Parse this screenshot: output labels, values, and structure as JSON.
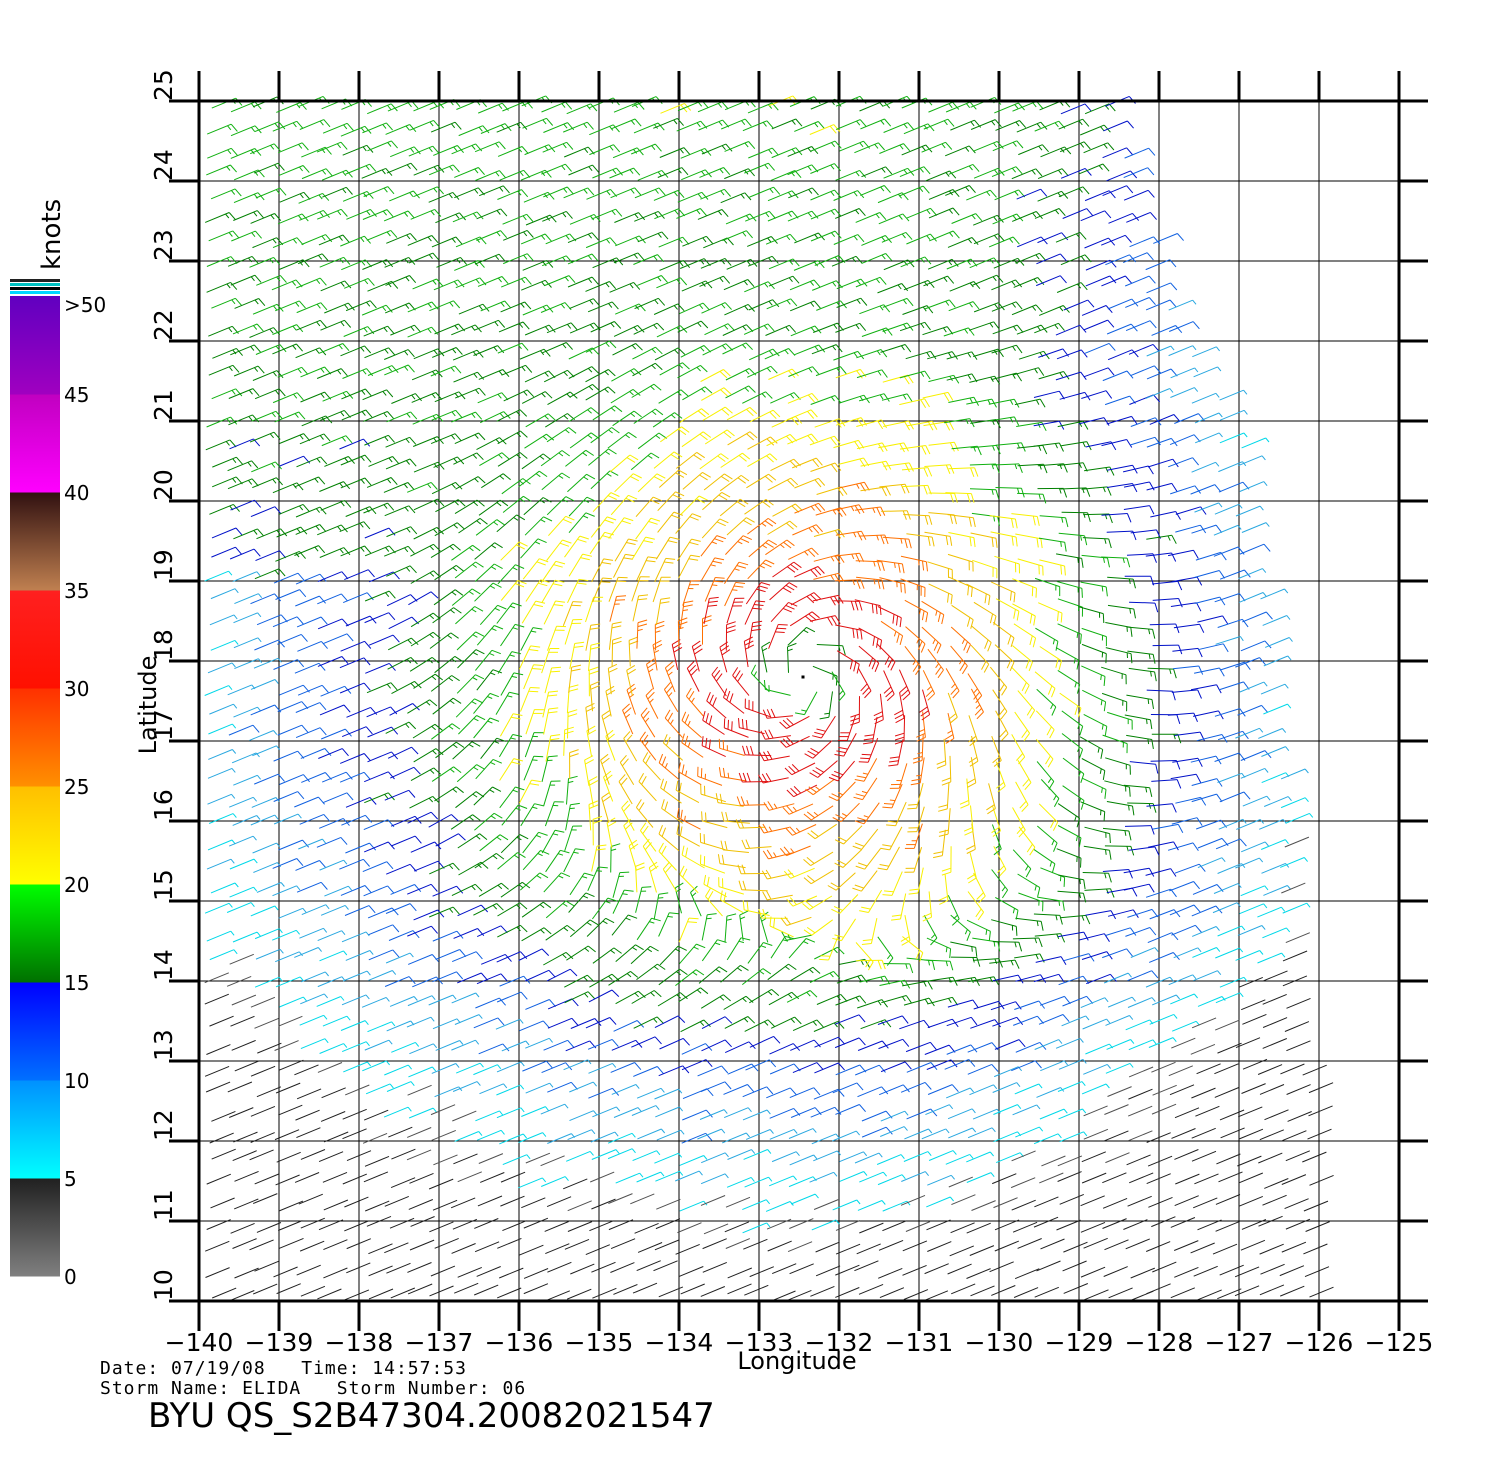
{
  "map": {
    "lon_range": [
      -140,
      -125
    ],
    "lat_range": [
      10,
      25
    ],
    "lon_ticks": [
      "−140",
      "−139",
      "−138",
      "−137",
      "−136",
      "−135",
      "−134",
      "−133",
      "−132",
      "−131",
      "−130",
      "−129",
      "−128",
      "−127",
      "−126",
      "−125"
    ],
    "lat_ticks": [
      "10",
      "11",
      "12",
      "13",
      "14",
      "15",
      "16",
      "17",
      "18",
      "19",
      "20",
      "21",
      "22",
      "23",
      "24",
      "25"
    ],
    "xlabel": "Longitude",
    "ylabel": "Latitude",
    "grid": true,
    "storm_center": {
      "lon": -132.45,
      "lat": 17.8
    }
  },
  "legend": {
    "unit": "knots",
    "labels": [
      {
        "value": 0,
        "text": "0"
      },
      {
        "value": 5,
        "text": "5"
      },
      {
        "value": 10,
        "text": "10"
      },
      {
        "value": 15,
        "text": "15"
      },
      {
        "value": 20,
        "text": "20"
      },
      {
        "value": 25,
        "text": "25"
      },
      {
        "value": 30,
        "text": "30"
      },
      {
        "value": 35,
        "text": "35"
      },
      {
        "value": 40,
        "text": "40"
      },
      {
        "value": 45,
        "text": "45"
      },
      {
        "value": 50,
        "text": ">50"
      }
    ],
    "colors": {
      "0-5": [
        "#808080",
        "#202020"
      ],
      "5-10": [
        "#00ffff",
        "#0090ff"
      ],
      "10-15": [
        "#0070ff",
        "#0000ff"
      ],
      "15-20": [
        "#007000",
        "#00ff00"
      ],
      "20-25": [
        "#ffff00",
        "#ffbf00"
      ],
      "25-30": [
        "#ff9000",
        "#ff3000"
      ],
      "30-35": [
        "#ff1000",
        "#ff2020"
      ],
      "35-40": [
        "#c08050",
        "#301010"
      ],
      "40-45": [
        "#ff00ff",
        "#c000c0"
      ],
      "45-50": [
        "#a000c0",
        "#6000c0"
      ]
    }
  },
  "info": {
    "date_label": "Date:",
    "date": "07/19/08",
    "time_label": "Time:",
    "time": "14:57:53",
    "storm_name_label": "Storm Name:",
    "storm_name": "ELIDA",
    "storm_number_label": "Storm Number:",
    "storm_number": "06",
    "product_id": "BYU QS_S2B47304.20082021547"
  }
}
